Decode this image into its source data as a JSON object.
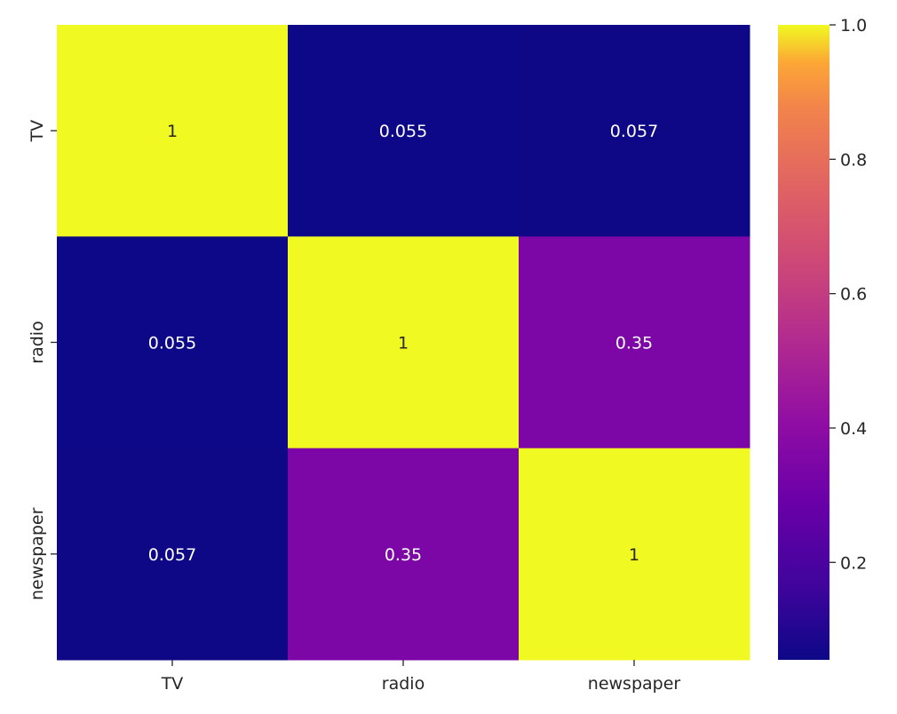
{
  "chart_data": {
    "type": "heatmap",
    "title": "",
    "xlabel": "",
    "ylabel": "",
    "x_categories": [
      "TV",
      "radio",
      "newspaper"
    ],
    "y_categories": [
      "TV",
      "radio",
      "newspaper"
    ],
    "values": [
      [
        1,
        0.055,
        0.057
      ],
      [
        0.055,
        1,
        0.35
      ],
      [
        0.057,
        0.35,
        1
      ]
    ],
    "annotations": [
      [
        "1",
        "0.055",
        "0.057"
      ],
      [
        "0.055",
        "1",
        "0.35"
      ],
      [
        "0.057",
        "0.35",
        "1"
      ]
    ],
    "colormap": "plasma",
    "color_range": [
      0.055,
      1.0
    ],
    "colorbar": {
      "ticks": [
        0.2,
        0.4,
        0.6,
        0.8,
        1.0
      ],
      "tick_labels": [
        "0.2",
        "0.4",
        "0.6",
        "0.8",
        "1.0"
      ]
    }
  }
}
